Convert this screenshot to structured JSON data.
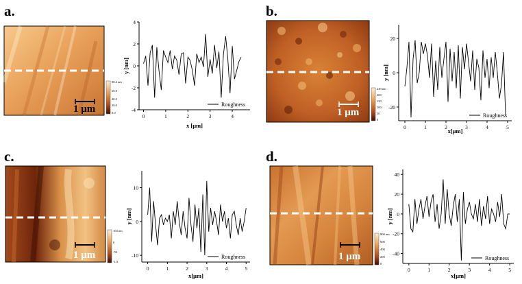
{
  "colors": {
    "afm_dark": "#3d1004",
    "afm_mid": "#b4521d",
    "afm_light": "#f5c987",
    "afm_pale": "#fdf0d6",
    "line": "#000000",
    "dashed": "#ffffff"
  },
  "panels": [
    {
      "label": "a.",
      "scale_bar": "1 μm",
      "colorbar_ticks": [
        "80.4 nm",
        "60.0",
        "40.0",
        "20.0",
        "0.0"
      ],
      "legend": "Roughness"
    },
    {
      "label": "b.",
      "scale_bar": "1 μm",
      "colorbar_ticks": [
        "249 nm",
        "200",
        "150",
        "100",
        "50",
        "0"
      ],
      "legend": "Roughness"
    },
    {
      "label": "c.",
      "scale_bar": "1 μm",
      "colorbar_ticks": [
        "104 nm",
        "0",
        "-50",
        "-111"
      ],
      "legend": "Roughness"
    },
    {
      "label": "d.",
      "scale_bar": "1 μm",
      "colorbar_ticks": [
        "800 nm",
        "600",
        "400",
        "200",
        "0"
      ],
      "legend": "Roughness"
    }
  ],
  "chart_data": [
    {
      "type": "line",
      "xlabel": "x [μm]",
      "ylabel": "y [nm]",
      "xlim": [
        -0.2,
        4.8
      ],
      "ylim": [
        -4,
        4
      ],
      "xticks": [
        0,
        1,
        2,
        3,
        4
      ],
      "yticks": [
        4,
        2,
        0,
        -2,
        -4
      ],
      "legend_position": "bottom-right",
      "series": [
        {
          "name": "Roughness",
          "x": [
            0.0,
            0.1,
            0.2,
            0.3,
            0.4,
            0.5,
            0.6,
            0.7,
            0.8,
            0.9,
            1.0,
            1.1,
            1.2,
            1.3,
            1.4,
            1.5,
            1.6,
            1.7,
            1.8,
            1.9,
            2.0,
            2.1,
            2.2,
            2.3,
            2.4,
            2.5,
            2.6,
            2.7,
            2.8,
            2.9,
            3.0,
            3.1,
            3.2,
            3.3,
            3.4,
            3.5,
            3.6,
            3.7,
            3.8,
            3.9,
            4.0,
            4.1,
            4.2,
            4.3,
            4.4
          ],
          "values": [
            0.2,
            0.9,
            -1.8,
            1.2,
            1.9,
            -2.9,
            1.7,
            -0.5,
            -2.2,
            1.4,
            0.8,
            0.3,
            1.4,
            -0.3,
            0.9,
            0.5,
            -0.8,
            1.1,
            1.2,
            -1.6,
            0.8,
            0.5,
            -0.4,
            -1.8,
            1.1,
            0.3,
            0.8,
            -0.1,
            2.9,
            -1.0,
            0.6,
            -0.7,
            1.9,
            -0.2,
            1.3,
            -2.9,
            1.0,
            2.7,
            0.6,
            -2.5,
            1.8,
            -1.2,
            -0.4,
            0.4,
            0.8
          ]
        }
      ]
    },
    {
      "type": "line",
      "xlabel": "x[μm]",
      "ylabel": "y [nm]",
      "xlim": [
        -0.3,
        5.2
      ],
      "ylim": [
        -28,
        28
      ],
      "xticks": [
        0,
        1,
        2,
        3,
        4,
        5
      ],
      "yticks": [
        20,
        0,
        -20
      ],
      "legend_position": "bottom-right",
      "series": [
        {
          "name": "Roughness",
          "x": [
            0.0,
            0.1,
            0.2,
            0.3,
            0.4,
            0.5,
            0.6,
            0.7,
            0.8,
            0.9,
            1.0,
            1.1,
            1.2,
            1.3,
            1.4,
            1.5,
            1.6,
            1.7,
            1.8,
            1.9,
            2.0,
            2.1,
            2.2,
            2.3,
            2.4,
            2.5,
            2.6,
            2.7,
            2.8,
            2.9,
            3.0,
            3.1,
            3.2,
            3.3,
            3.4,
            3.5,
            3.6,
            3.7,
            3.8,
            3.9,
            4.0,
            4.1,
            4.2,
            4.3,
            4.4,
            4.5,
            4.6,
            4.7,
            4.8,
            4.9
          ],
          "values": [
            -8,
            3,
            18,
            -26,
            8,
            19,
            -6,
            0,
            18,
            11,
            17,
            10,
            -3,
            17,
            -14,
            7,
            -10,
            15,
            -3,
            8,
            18,
            -17,
            14,
            -5,
            12,
            -9,
            16,
            -15,
            15,
            2,
            17,
            6,
            -5,
            13,
            -10,
            8,
            3,
            -16,
            13,
            -3,
            8,
            -9,
            9,
            -3,
            12,
            0,
            -15,
            -7,
            12,
            -25
          ]
        }
      ]
    },
    {
      "type": "line",
      "xlabel": "x[μm]",
      "ylabel": "y [nm]",
      "xlim": [
        -0.3,
        5.2
      ],
      "ylim": [
        -12,
        15
      ],
      "xticks": [
        0,
        1,
        2,
        3,
        4,
        5
      ],
      "yticks": [
        10,
        0,
        -10
      ],
      "legend_position": "bottom-right",
      "series": [
        {
          "name": "Roughness",
          "x": [
            0.0,
            0.1,
            0.2,
            0.3,
            0.4,
            0.5,
            0.6,
            0.7,
            0.8,
            0.9,
            1.0,
            1.1,
            1.2,
            1.3,
            1.4,
            1.5,
            1.6,
            1.7,
            1.8,
            1.9,
            2.0,
            2.1,
            2.2,
            2.3,
            2.4,
            2.5,
            2.6,
            2.7,
            2.8,
            2.9,
            3.0,
            3.1,
            3.2,
            3.3,
            3.4,
            3.5,
            3.6,
            3.7,
            3.8,
            3.9,
            4.0,
            4.1,
            4.2,
            4.3,
            4.4,
            4.5,
            4.6,
            4.7,
            4.8,
            4.9,
            5.0
          ],
          "values": [
            2,
            10,
            -6,
            6,
            -1,
            -7,
            1,
            2,
            -1,
            1,
            0,
            2,
            -5,
            3,
            -1,
            6,
            0,
            -4,
            3,
            -2,
            -5,
            7,
            -1,
            -6,
            5,
            -2,
            4,
            -9,
            8,
            -10,
            12,
            -3,
            4,
            -1,
            3,
            0,
            -4,
            5,
            0,
            3,
            -2,
            1,
            -5,
            2,
            3,
            -1,
            -4,
            1,
            -3,
            0,
            4
          ]
        }
      ]
    },
    {
      "type": "line",
      "xlabel": "x[μm]",
      "ylabel": "y [nm]",
      "xlim": [
        -0.3,
        5.2
      ],
      "ylim": [
        -50,
        45
      ],
      "xticks": [
        0,
        1,
        2,
        3,
        4,
        5
      ],
      "yticks": [
        40,
        20,
        0,
        -20,
        -40
      ],
      "legend_position": "bottom-right",
      "series": [
        {
          "name": "Roughness",
          "x": [
            0.0,
            0.1,
            0.2,
            0.3,
            0.4,
            0.5,
            0.6,
            0.7,
            0.8,
            0.9,
            1.0,
            1.1,
            1.2,
            1.3,
            1.4,
            1.5,
            1.6,
            1.7,
            1.8,
            1.9,
            2.0,
            2.1,
            2.2,
            2.3,
            2.4,
            2.5,
            2.6,
            2.7,
            2.8,
            2.9,
            3.0,
            3.1,
            3.2,
            3.3,
            3.4,
            3.5,
            3.6,
            3.7,
            3.8,
            3.9,
            4.0,
            4.1,
            4.2,
            4.3,
            4.4,
            4.5,
            4.6,
            4.7,
            4.8,
            4.9,
            5.0
          ],
          "values": [
            10,
            -15,
            -18,
            15,
            -10,
            5,
            15,
            -5,
            8,
            18,
            -3,
            12,
            20,
            -8,
            10,
            -15,
            0,
            35,
            -10,
            25,
            0,
            -12,
            8,
            20,
            -8,
            15,
            -47,
            22,
            -10,
            5,
            12,
            0,
            -5,
            10,
            -8,
            15,
            -12,
            8,
            -5,
            18,
            -10,
            5,
            0,
            -8,
            12,
            -3,
            20,
            -10,
            -15,
            0,
            0
          ]
        }
      ]
    }
  ]
}
